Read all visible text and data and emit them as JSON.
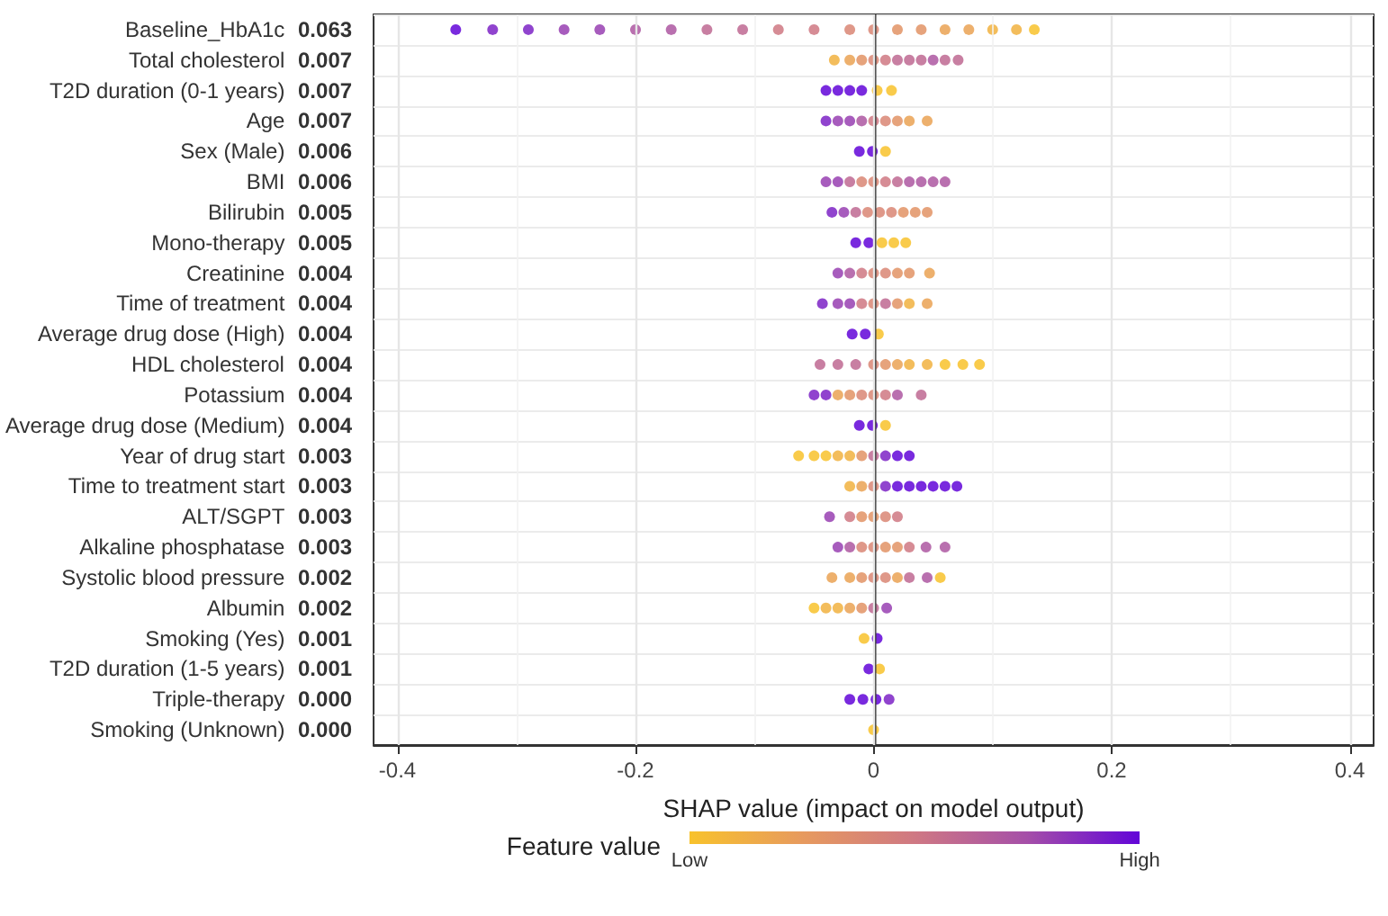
{
  "chart_data": {
    "type": "scatter",
    "orientation": "horizontal",
    "xlabel": "SHAP value (impact on model output)",
    "clabel": "Feature value",
    "cticks": [
      "Low",
      "High"
    ],
    "xlim": [
      -0.42,
      0.42
    ],
    "xticks": [
      -0.4,
      {
        "value": -0.3,
        "label": null
      },
      -0.2,
      {
        "value": -0.1,
        "label": null
      },
      0.0,
      {
        "value": 0.1,
        "label": null
      },
      0.2,
      {
        "value": 0.3,
        "label": null
      },
      0.4
    ],
    "grid": true,
    "marker": "circle",
    "ref_lines": [
      {
        "axis": "x",
        "value": 0,
        "color": "#333333"
      }
    ],
    "categories": [
      "Baseline_HbA1c",
      "Total cholesterol",
      "T2D duration (0-1 years)",
      "Age",
      "Sex (Male)",
      "BMI",
      "Bilirubin",
      "Mono-therapy",
      "Creatinine",
      "Time of treatment",
      "Average drug dose (High)",
      "HDL cholesterol",
      "Potassium",
      "Average drug dose (Medium)",
      "Year of drug start",
      "Time to treatment start",
      "ALT/SGPT",
      "Alkaline phosphatase",
      "Systolic blood pressure",
      "Albumin",
      "Smoking (Yes)",
      "T2D duration (1-5 years)",
      "Triple-therapy",
      "Smoking (Unknown)"
    ],
    "annotations": [
      "0.063",
      "0.007",
      "0.007",
      "0.007",
      "0.006",
      "0.006",
      "0.005",
      "0.005",
      "0.004",
      "0.004",
      "0.004",
      "0.004",
      "0.004",
      "0.004",
      "0.003",
      "0.003",
      "0.003",
      "0.003",
      "0.002",
      "0.002",
      "0.001",
      "0.001",
      "0.000",
      "0.000"
    ],
    "series": [
      {
        "x": [
          "Baseline_HbA1c",
          "Baseline_HbA1c",
          "Baseline_HbA1c",
          "Baseline_HbA1c",
          "Baseline_HbA1c",
          "Baseline_HbA1c",
          "Baseline_HbA1c",
          "Baseline_HbA1c",
          "Baseline_HbA1c",
          "Baseline_HbA1c",
          "Baseline_HbA1c",
          "Baseline_HbA1c",
          "Baseline_HbA1c",
          "Baseline_HbA1c",
          "Baseline_HbA1c",
          "Baseline_HbA1c",
          "Baseline_HbA1c",
          "Baseline_HbA1c",
          "Baseline_HbA1c",
          "Baseline_HbA1c"
        ],
        "values": [
          -0.351,
          -0.32,
          -0.29,
          -0.26,
          -0.23,
          -0.2,
          -0.17,
          -0.14,
          -0.11,
          -0.08,
          -0.05,
          -0.02,
          0,
          0.02,
          0.04,
          0.06,
          0.08,
          0.1,
          0.12,
          0.135
        ],
        "colors": [
          "#6205d8",
          "#7d23c5",
          "#7d23c5",
          "#9840b2",
          "#9840b2",
          "#ad57a1",
          "#ad57a1",
          "#be6892",
          "#be6892",
          "#cf7883",
          "#cf7883",
          "#d98674",
          "#d98674",
          "#e29365",
          "#e29365",
          "#eaa254",
          "#eaa254",
          "#f1b240",
          "#f1b240",
          "#f8c22c"
        ]
      },
      {
        "x": [
          "Total cholesterol",
          "Total cholesterol",
          "Total cholesterol",
          "Total cholesterol",
          "Total cholesterol",
          "Total cholesterol",
          "Total cholesterol",
          "Total cholesterol",
          "Total cholesterol",
          "Total cholesterol",
          "Total cholesterol"
        ],
        "values": [
          -0.033,
          -0.02,
          -0.01,
          0,
          0.01,
          0.02,
          0.03,
          0.04,
          0.05,
          0.06,
          0.071
        ],
        "colors": [
          "#f1b240",
          "#eaa254",
          "#e29365",
          "#d98674",
          "#cf7883",
          "#be6892",
          "#be6892",
          "#be6892",
          "#ad57a1",
          "#be6892",
          "#be6892"
        ]
      },
      {
        "x": [
          "T2D duration (0-1 years)",
          "T2D duration (0-1 years)",
          "T2D duration (0-1 years)",
          "T2D duration (0-1 years)",
          "T2D duration (0-1 years)",
          "T2D duration (0-1 years)"
        ],
        "values": [
          -0.04,
          -0.03,
          -0.02,
          -0.01,
          0.003,
          0.015
        ],
        "colors": [
          "#6205d8",
          "#6205d8",
          "#6205d8",
          "#6205d8",
          "#f8c22c",
          "#f8c22c"
        ]
      },
      {
        "x": [
          "Age",
          "Age",
          "Age",
          "Age",
          "Age",
          "Age",
          "Age",
          "Age",
          "Age"
        ],
        "values": [
          -0.04,
          -0.03,
          -0.02,
          -0.01,
          0,
          0.01,
          0.02,
          0.03,
          0.045
        ],
        "colors": [
          "#7d23c5",
          "#9840b2",
          "#9840b2",
          "#ad57a1",
          "#cf7883",
          "#d98674",
          "#e29365",
          "#eaa254",
          "#eaa254"
        ]
      },
      {
        "x": [
          "Sex (Male)",
          "Sex (Male)",
          "Sex (Male)"
        ],
        "values": [
          -0.012,
          -0.001,
          0.01
        ],
        "colors": [
          "#6205d8",
          "#6205d8",
          "#f8c22c"
        ]
      },
      {
        "x": [
          "BMI",
          "BMI",
          "BMI",
          "BMI",
          "BMI",
          "BMI",
          "BMI",
          "BMI",
          "BMI",
          "BMI",
          "BMI"
        ],
        "values": [
          -0.04,
          -0.03,
          -0.02,
          -0.01,
          0,
          0.01,
          0.02,
          0.03,
          0.04,
          0.05,
          0.06
        ],
        "colors": [
          "#9840b2",
          "#9840b2",
          "#be6892",
          "#d98674",
          "#d98674",
          "#cf7883",
          "#be6892",
          "#ad57a1",
          "#ad57a1",
          "#ad57a1",
          "#ad57a1"
        ]
      },
      {
        "x": [
          "Bilirubin",
          "Bilirubin",
          "Bilirubin",
          "Bilirubin",
          "Bilirubin",
          "Bilirubin",
          "Bilirubin",
          "Bilirubin",
          "Bilirubin"
        ],
        "values": [
          -0.035,
          -0.025,
          -0.015,
          -0.005,
          0.005,
          0.015,
          0.025,
          0.035,
          0.045
        ],
        "colors": [
          "#7d23c5",
          "#9840b2",
          "#be6892",
          "#d98674",
          "#d98674",
          "#d98674",
          "#e29365",
          "#e29365",
          "#e29365"
        ]
      },
      {
        "x": [
          "Mono-therapy",
          "Mono-therapy",
          "Mono-therapy",
          "Mono-therapy",
          "Mono-therapy"
        ],
        "values": [
          -0.015,
          -0.004,
          0.007,
          0.017,
          0.027
        ],
        "colors": [
          "#6205d8",
          "#6205d8",
          "#f8c22c",
          "#f8c22c",
          "#f8c22c"
        ]
      },
      {
        "x": [
          "Creatinine",
          "Creatinine",
          "Creatinine",
          "Creatinine",
          "Creatinine",
          "Creatinine",
          "Creatinine",
          "Creatinine"
        ],
        "values": [
          -0.03,
          -0.02,
          -0.01,
          0,
          0.01,
          0.02,
          0.03,
          0.047
        ],
        "colors": [
          "#9840b2",
          "#ad57a1",
          "#cf7883",
          "#d98674",
          "#d98674",
          "#e29365",
          "#e29365",
          "#eaa254"
        ]
      },
      {
        "x": [
          "Time of treatment",
          "Time of treatment",
          "Time of treatment",
          "Time of treatment",
          "Time of treatment",
          "Time of treatment",
          "Time of treatment",
          "Time of treatment",
          "Time of treatment"
        ],
        "values": [
          -0.043,
          -0.03,
          -0.02,
          -0.01,
          0,
          0.01,
          0.02,
          0.03,
          0.045
        ],
        "colors": [
          "#7d23c5",
          "#9840b2",
          "#9840b2",
          "#cf7883",
          "#d98674",
          "#be6892",
          "#e29365",
          "#f1b240",
          "#eaa254"
        ]
      },
      {
        "x": [
          "Average drug dose (High)",
          "Average drug dose (High)",
          "Average drug dose (High)"
        ],
        "values": [
          -0.018,
          -0.007,
          0.004
        ],
        "colors": [
          "#6205d8",
          "#6205d8",
          "#f8c22c"
        ]
      },
      {
        "x": [
          "HDL cholesterol",
          "HDL cholesterol",
          "HDL cholesterol",
          "HDL cholesterol",
          "HDL cholesterol",
          "HDL cholesterol",
          "HDL cholesterol",
          "HDL cholesterol",
          "HDL cholesterol",
          "HDL cholesterol",
          "HDL cholesterol"
        ],
        "values": [
          -0.045,
          -0.03,
          -0.015,
          0,
          0.01,
          0.02,
          0.03,
          0.045,
          0.06,
          0.075,
          0.089
        ],
        "colors": [
          "#be6892",
          "#be6892",
          "#be6892",
          "#d98674",
          "#e29365",
          "#eaa254",
          "#f1b240",
          "#f1b240",
          "#f8c22c",
          "#f8c22c",
          "#f8c22c"
        ]
      },
      {
        "x": [
          "Potassium",
          "Potassium",
          "Potassium",
          "Potassium",
          "Potassium",
          "Potassium",
          "Potassium",
          "Potassium",
          "Potassium"
        ],
        "values": [
          -0.05,
          -0.04,
          -0.03,
          -0.02,
          -0.01,
          0,
          0.01,
          0.02,
          0.04
        ],
        "colors": [
          "#7d23c5",
          "#7d23c5",
          "#eaa254",
          "#e29365",
          "#d98674",
          "#d98674",
          "#cf7883",
          "#ad57a1",
          "#be6892"
        ]
      },
      {
        "x": [
          "Average drug dose (Medium)",
          "Average drug dose (Medium)",
          "Average drug dose (Medium)"
        ],
        "values": [
          -0.012,
          -0.001,
          0.01
        ],
        "colors": [
          "#6205d8",
          "#6205d8",
          "#f8c22c"
        ]
      },
      {
        "x": [
          "Year of drug start",
          "Year of drug start",
          "Year of drug start",
          "Year of drug start",
          "Year of drug start",
          "Year of drug start",
          "Year of drug start",
          "Year of drug start",
          "Year of drug start",
          "Year of drug start"
        ],
        "values": [
          -0.063,
          -0.05,
          -0.04,
          -0.03,
          -0.02,
          -0.01,
          0,
          0.01,
          0.02,
          0.03
        ],
        "colors": [
          "#f8c22c",
          "#f8c22c",
          "#f8c22c",
          "#f1b240",
          "#f1b240",
          "#e29365",
          "#be6892",
          "#7d23c5",
          "#6205d8",
          "#6205d8"
        ]
      },
      {
        "x": [
          "Time to treatment start",
          "Time to treatment start",
          "Time to treatment start",
          "Time to treatment start",
          "Time to treatment start",
          "Time to treatment start",
          "Time to treatment start",
          "Time to treatment start",
          "Time to treatment start",
          "Time to treatment start"
        ],
        "values": [
          -0.02,
          -0.01,
          0,
          0.01,
          0.02,
          0.03,
          0.04,
          0.05,
          0.06,
          0.07
        ],
        "colors": [
          "#f1b240",
          "#eaa254",
          "#d98674",
          "#7d23c5",
          "#6205d8",
          "#6205d8",
          "#6205d8",
          "#6205d8",
          "#6205d8",
          "#6205d8"
        ]
      },
      {
        "x": [
          "ALT/SGPT",
          "ALT/SGPT",
          "ALT/SGPT",
          "ALT/SGPT",
          "ALT/SGPT",
          "ALT/SGPT"
        ],
        "values": [
          -0.037,
          -0.02,
          -0.01,
          0,
          0.01,
          0.02
        ],
        "colors": [
          "#9840b2",
          "#cf7883",
          "#e29365",
          "#e29365",
          "#d98674",
          "#cf7883"
        ]
      },
      {
        "x": [
          "Alkaline phosphatase",
          "Alkaline phosphatase",
          "Alkaline phosphatase",
          "Alkaline phosphatase",
          "Alkaline phosphatase",
          "Alkaline phosphatase",
          "Alkaline phosphatase",
          "Alkaline phosphatase",
          "Alkaline phosphatase"
        ],
        "values": [
          -0.03,
          -0.02,
          -0.01,
          0,
          0.01,
          0.02,
          0.03,
          0.044,
          0.06
        ],
        "colors": [
          "#9840b2",
          "#ad57a1",
          "#d98674",
          "#d98674",
          "#e29365",
          "#e29365",
          "#cf7883",
          "#ad57a1",
          "#ad57a1"
        ]
      },
      {
        "x": [
          "Systolic blood pressure",
          "Systolic blood pressure",
          "Systolic blood pressure",
          "Systolic blood pressure",
          "Systolic blood pressure",
          "Systolic blood pressure",
          "Systolic blood pressure",
          "Systolic blood pressure",
          "Systolic blood pressure"
        ],
        "values": [
          -0.035,
          -0.02,
          -0.01,
          0,
          0.01,
          0.02,
          0.03,
          0.045,
          0.056
        ],
        "colors": [
          "#eaa254",
          "#eaa254",
          "#e29365",
          "#d98674",
          "#d98674",
          "#eaa254",
          "#be6892",
          "#ad57a1",
          "#f8c22c"
        ]
      },
      {
        "x": [
          "Albumin",
          "Albumin",
          "Albumin",
          "Albumin",
          "Albumin",
          "Albumin",
          "Albumin"
        ],
        "values": [
          -0.05,
          -0.04,
          -0.03,
          -0.02,
          -0.01,
          0,
          0.011
        ],
        "colors": [
          "#f8c22c",
          "#f1b240",
          "#f1b240",
          "#eaa254",
          "#e29365",
          "#be6892",
          "#9840b2"
        ]
      },
      {
        "x": [
          "Smoking (Yes)",
          "Smoking (Yes)"
        ],
        "values": [
          -0.008,
          0.003
        ],
        "colors": [
          "#f8c22c",
          "#6205d8"
        ]
      },
      {
        "x": [
          "T2D duration (1-5 years)",
          "T2D duration (1-5 years)"
        ],
        "values": [
          -0.004,
          0.005
        ],
        "colors": [
          "#6205d8",
          "#f8c22c"
        ]
      },
      {
        "x": [
          "Triple-therapy",
          "Triple-therapy",
          "Triple-therapy",
          "Triple-therapy"
        ],
        "values": [
          -0.02,
          -0.009,
          0.002,
          0.013
        ],
        "colors": [
          "#6205d8",
          "#6205d8",
          "#6205d8",
          "#7d23c5"
        ]
      },
      {
        "x": [
          "Smoking (Unknown)"
        ],
        "values": [
          0
        ],
        "colors": [
          "#f8c22c"
        ]
      }
    ]
  }
}
